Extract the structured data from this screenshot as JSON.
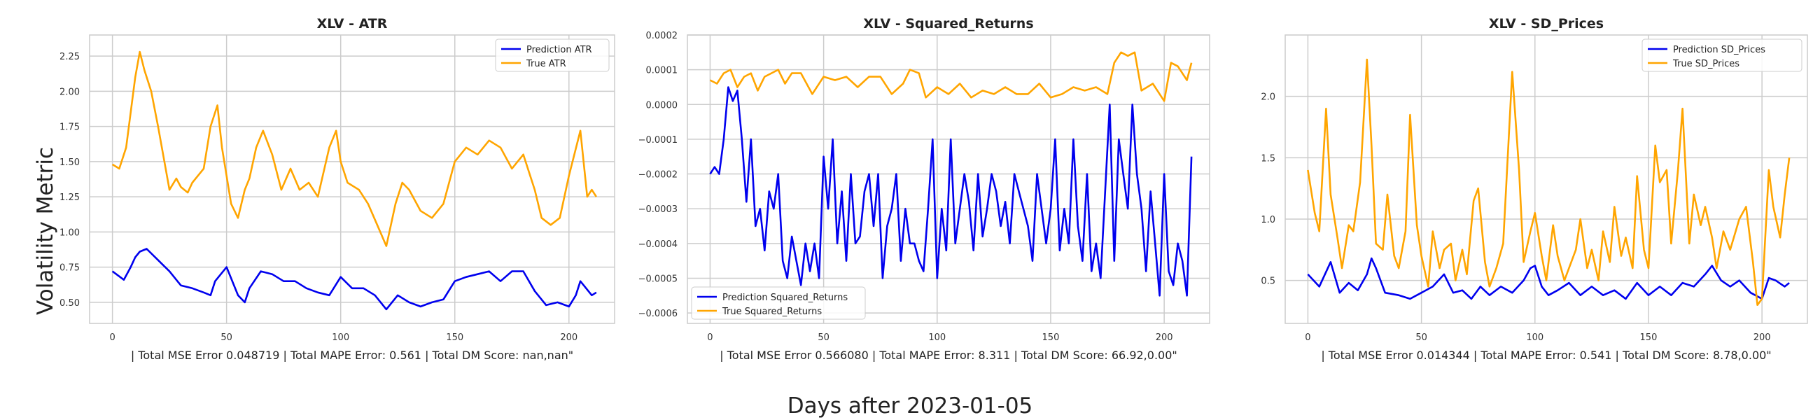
{
  "figure": {
    "ylabel": "Volatility Metric",
    "xlabel": "Days after 2023-01-05"
  },
  "chart_data": [
    {
      "type": "line",
      "title": "XLV - ATR",
      "note": "| Total MSE Error 0.048719 | Total MAPE Error: 0.561 | Total DM Score: nan,nan\"",
      "xlim": [
        -10,
        220
      ],
      "ylim": [
        0.35,
        2.4
      ],
      "xticks": [
        0,
        50,
        100,
        150,
        200
      ],
      "yticks": [
        0.5,
        0.75,
        1.0,
        1.25,
        1.5,
        1.75,
        2.0,
        2.25
      ],
      "ytick_labels": [
        "0.50",
        "0.75",
        "1.00",
        "1.25",
        "1.50",
        "1.75",
        "2.00",
        "2.25"
      ],
      "grid": true,
      "legend_position": "top-right",
      "series": [
        {
          "name": "Prediction ATR",
          "color": "#0000ee",
          "x": [
            0,
            5,
            8,
            10,
            12,
            15,
            20,
            25,
            30,
            35,
            40,
            43,
            45,
            50,
            55,
            58,
            60,
            65,
            70,
            75,
            80,
            85,
            90,
            95,
            100,
            105,
            110,
            115,
            120,
            125,
            130,
            135,
            140,
            145,
            150,
            155,
            160,
            165,
            170,
            175,
            180,
            185,
            190,
            195,
            200,
            203,
            205,
            210,
            212
          ],
          "values": [
            0.72,
            0.66,
            0.75,
            0.82,
            0.86,
            0.88,
            0.8,
            0.72,
            0.62,
            0.6,
            0.57,
            0.55,
            0.65,
            0.75,
            0.55,
            0.5,
            0.6,
            0.72,
            0.7,
            0.65,
            0.65,
            0.6,
            0.57,
            0.55,
            0.68,
            0.6,
            0.6,
            0.55,
            0.45,
            0.55,
            0.5,
            0.47,
            0.5,
            0.52,
            0.65,
            0.68,
            0.7,
            0.72,
            0.65,
            0.72,
            0.72,
            0.58,
            0.48,
            0.5,
            0.47,
            0.55,
            0.65,
            0.55,
            0.57
          ]
        },
        {
          "name": "True ATR",
          "color": "#ffa500",
          "x": [
            0,
            3,
            6,
            10,
            12,
            14,
            17,
            20,
            25,
            28,
            30,
            33,
            35,
            40,
            43,
            46,
            48,
            52,
            55,
            58,
            60,
            63,
            66,
            70,
            74,
            78,
            82,
            86,
            90,
            95,
            98,
            100,
            103,
            108,
            112,
            116,
            120,
            124,
            127,
            130,
            135,
            140,
            145,
            150,
            155,
            160,
            165,
            170,
            175,
            180,
            185,
            188,
            192,
            196,
            200,
            205,
            208,
            210,
            212
          ],
          "values": [
            1.48,
            1.45,
            1.6,
            2.1,
            2.28,
            2.15,
            2.0,
            1.75,
            1.3,
            1.38,
            1.32,
            1.28,
            1.35,
            1.45,
            1.75,
            1.9,
            1.6,
            1.2,
            1.1,
            1.3,
            1.38,
            1.6,
            1.72,
            1.55,
            1.3,
            1.45,
            1.3,
            1.35,
            1.25,
            1.6,
            1.72,
            1.5,
            1.35,
            1.3,
            1.2,
            1.05,
            0.9,
            1.2,
            1.35,
            1.3,
            1.15,
            1.1,
            1.2,
            1.5,
            1.6,
            1.55,
            1.65,
            1.6,
            1.45,
            1.55,
            1.3,
            1.1,
            1.05,
            1.1,
            1.4,
            1.72,
            1.25,
            1.3,
            1.25
          ]
        }
      ]
    },
    {
      "type": "line",
      "title": "XLV - Squared_Returns",
      "note": "| Total MSE Error 0.566080 | Total MAPE Error: 8.311 | Total DM Score: 66.92,0.00\"",
      "xlim": [
        -10,
        220
      ],
      "ylim": [
        -0.00063,
        0.0002
      ],
      "xticks": [
        0,
        50,
        100,
        150,
        200
      ],
      "yticks": [
        -0.0006,
        -0.0005,
        -0.0004,
        -0.0003,
        -0.0002,
        -0.0001,
        0.0,
        0.0001,
        0.0002
      ],
      "ytick_labels": [
        "−0.0006",
        "−0.0005",
        "−0.0004",
        "−0.0003",
        "−0.0002",
        "−0.0001",
        "0.0000",
        "0.0001",
        "0.0002"
      ],
      "grid": true,
      "legend_position": "bottom-left",
      "series": [
        {
          "name": "Prediction Squared_Returns",
          "color": "#0000ee",
          "x": [
            0,
            2,
            4,
            6,
            8,
            10,
            12,
            14,
            16,
            18,
            20,
            22,
            24,
            26,
            28,
            30,
            32,
            34,
            36,
            38,
            40,
            42,
            44,
            46,
            48,
            50,
            52,
            54,
            56,
            58,
            60,
            62,
            64,
            66,
            68,
            70,
            72,
            74,
            76,
            78,
            80,
            82,
            84,
            86,
            88,
            90,
            92,
            94,
            96,
            98,
            100,
            102,
            104,
            106,
            108,
            110,
            112,
            114,
            116,
            118,
            120,
            122,
            124,
            126,
            128,
            130,
            132,
            134,
            136,
            138,
            140,
            142,
            144,
            146,
            148,
            150,
            152,
            154,
            156,
            158,
            160,
            162,
            164,
            166,
            168,
            170,
            172,
            174,
            176,
            178,
            180,
            182,
            184,
            186,
            188,
            190,
            192,
            194,
            196,
            198,
            200,
            202,
            204,
            206,
            208,
            210,
            212
          ],
          "values": [
            -0.0002,
            -0.00018,
            -0.0002,
            -0.0001,
            5e-05,
            1e-05,
            4e-05,
            -0.0001,
            -0.00028,
            -0.0001,
            -0.00035,
            -0.0003,
            -0.00042,
            -0.00025,
            -0.0003,
            -0.0002,
            -0.00045,
            -0.0005,
            -0.00038,
            -0.00045,
            -0.00052,
            -0.0004,
            -0.00048,
            -0.0004,
            -0.0005,
            -0.00015,
            -0.0003,
            -0.0001,
            -0.0004,
            -0.00025,
            -0.00045,
            -0.0002,
            -0.0004,
            -0.00038,
            -0.00025,
            -0.0002,
            -0.00035,
            -0.0002,
            -0.0005,
            -0.00035,
            -0.0003,
            -0.0002,
            -0.00045,
            -0.0003,
            -0.0004,
            -0.0004,
            -0.00045,
            -0.00048,
            -0.0003,
            -0.0001,
            -0.0005,
            -0.0003,
            -0.00042,
            -0.0001,
            -0.0004,
            -0.0003,
            -0.0002,
            -0.00028,
            -0.00042,
            -0.0002,
            -0.00038,
            -0.0003,
            -0.0002,
            -0.00025,
            -0.00035,
            -0.00028,
            -0.0004,
            -0.0002,
            -0.00025,
            -0.0003,
            -0.00035,
            -0.00045,
            -0.0002,
            -0.0003,
            -0.0004,
            -0.0003,
            -0.0001,
            -0.00042,
            -0.0003,
            -0.0004,
            -0.0001,
            -0.00035,
            -0.00045,
            -0.0002,
            -0.00048,
            -0.0004,
            -0.0005,
            -0.00025,
            0.0,
            -0.00045,
            -0.0001,
            -0.0002,
            -0.0003,
            0.0,
            -0.0002,
            -0.0003,
            -0.00048,
            -0.00025,
            -0.0004,
            -0.00055,
            -0.0002,
            -0.00048,
            -0.00052,
            -0.0004,
            -0.00045,
            -0.00055,
            -0.00015
          ]
        },
        {
          "name": "True Squared_Returns",
          "color": "#ffa500",
          "x": [
            0,
            3,
            6,
            9,
            12,
            15,
            18,
            21,
            24,
            27,
            30,
            33,
            36,
            40,
            45,
            50,
            55,
            60,
            65,
            70,
            75,
            80,
            85,
            88,
            92,
            95,
            100,
            105,
            110,
            115,
            120,
            125,
            130,
            135,
            140,
            145,
            150,
            155,
            160,
            165,
            170,
            175,
            178,
            181,
            184,
            187,
            190,
            195,
            200,
            203,
            206,
            210,
            212
          ],
          "values": [
            7e-05,
            6e-05,
            9e-05,
            0.0001,
            5e-05,
            8e-05,
            9e-05,
            4e-05,
            8e-05,
            9e-05,
            0.0001,
            6e-05,
            9e-05,
            9e-05,
            3e-05,
            8e-05,
            7e-05,
            8e-05,
            5e-05,
            8e-05,
            8e-05,
            3e-05,
            6e-05,
            0.0001,
            9e-05,
            2e-05,
            5e-05,
            3e-05,
            6e-05,
            2e-05,
            4e-05,
            3e-05,
            5e-05,
            3e-05,
            3e-05,
            6e-05,
            2e-05,
            3e-05,
            5e-05,
            4e-05,
            5e-05,
            3e-05,
            0.00012,
            0.00015,
            0.00014,
            0.00015,
            4e-05,
            6e-05,
            1e-05,
            0.00012,
            0.00011,
            7e-05,
            0.00012
          ]
        }
      ]
    },
    {
      "type": "line",
      "title": "XLV - SD_Prices",
      "note": "| Total MSE Error 0.014344 | Total MAPE Error: 0.541 | Total DM Score: 8.78,0.00\"",
      "xlim": [
        -10,
        220
      ],
      "ylim": [
        0.15,
        2.5
      ],
      "xticks": [
        0,
        50,
        100,
        150,
        200
      ],
      "yticks": [
        0.5,
        1.0,
        1.5,
        2.0
      ],
      "ytick_labels": [
        "0.5",
        "1.0",
        "1.5",
        "2.0"
      ],
      "grid": true,
      "legend_position": "top-right",
      "series": [
        {
          "name": "Prediction SD_Prices",
          "color": "#0000ee",
          "x": [
            0,
            5,
            10,
            14,
            18,
            22,
            26,
            28,
            30,
            34,
            40,
            45,
            50,
            55,
            60,
            64,
            68,
            72,
            76,
            80,
            85,
            90,
            95,
            98,
            100,
            103,
            106,
            110,
            115,
            120,
            125,
            130,
            135,
            140,
            145,
            150,
            155,
            160,
            165,
            170,
            175,
            178,
            182,
            186,
            190,
            195,
            200,
            203,
            206,
            210,
            212
          ],
          "values": [
            0.55,
            0.45,
            0.65,
            0.4,
            0.48,
            0.42,
            0.55,
            0.68,
            0.6,
            0.4,
            0.38,
            0.35,
            0.4,
            0.45,
            0.55,
            0.4,
            0.42,
            0.35,
            0.45,
            0.38,
            0.45,
            0.4,
            0.5,
            0.6,
            0.62,
            0.45,
            0.38,
            0.42,
            0.48,
            0.38,
            0.45,
            0.38,
            0.42,
            0.35,
            0.48,
            0.38,
            0.45,
            0.38,
            0.48,
            0.45,
            0.55,
            0.62,
            0.5,
            0.45,
            0.5,
            0.4,
            0.35,
            0.52,
            0.5,
            0.45,
            0.48
          ]
        },
        {
          "name": "True SD_Prices",
          "color": "#ffa500",
          "x": [
            0,
            3,
            5,
            8,
            10,
            13,
            15,
            18,
            20,
            23,
            26,
            28,
            30,
            33,
            35,
            38,
            40,
            43,
            45,
            48,
            50,
            53,
            55,
            58,
            60,
            63,
            65,
            68,
            70,
            73,
            75,
            78,
            80,
            83,
            86,
            90,
            93,
            95,
            98,
            100,
            103,
            105,
            108,
            110,
            113,
            115,
            118,
            120,
            123,
            125,
            128,
            130,
            133,
            135,
            138,
            140,
            143,
            145,
            148,
            150,
            153,
            155,
            158,
            160,
            163,
            165,
            168,
            170,
            173,
            175,
            178,
            180,
            183,
            186,
            190,
            193,
            196,
            198,
            200,
            203,
            205,
            208,
            210,
            212
          ],
          "values": [
            1.4,
            1.05,
            0.9,
            1.9,
            1.2,
            0.85,
            0.6,
            0.95,
            0.9,
            1.3,
            2.3,
            1.6,
            0.8,
            0.75,
            1.2,
            0.7,
            0.6,
            0.9,
            1.85,
            0.95,
            0.7,
            0.45,
            0.9,
            0.6,
            0.75,
            0.8,
            0.5,
            0.75,
            0.55,
            1.15,
            1.25,
            0.65,
            0.45,
            0.6,
            0.8,
            2.2,
            1.4,
            0.65,
            0.9,
            1.05,
            0.7,
            0.5,
            0.95,
            0.7,
            0.5,
            0.6,
            0.75,
            1.0,
            0.6,
            0.75,
            0.5,
            0.9,
            0.65,
            1.1,
            0.7,
            0.85,
            0.6,
            1.35,
            0.75,
            0.6,
            1.6,
            1.3,
            1.4,
            0.8,
            1.4,
            1.9,
            0.8,
            1.2,
            0.95,
            1.1,
            0.85,
            0.6,
            0.9,
            0.75,
            1.0,
            1.1,
            0.65,
            0.3,
            0.35,
            1.4,
            1.1,
            0.85,
            1.2,
            1.5
          ]
        }
      ]
    }
  ]
}
